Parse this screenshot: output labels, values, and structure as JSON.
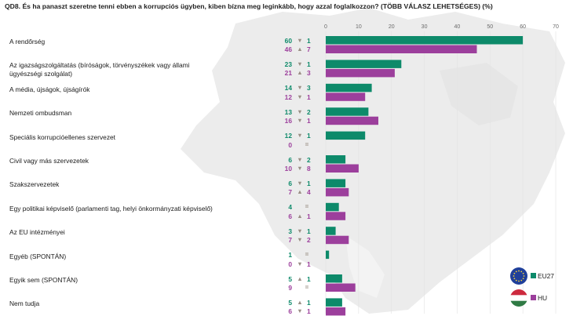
{
  "title": "QD8. És ha panaszt szeretne tenni ebben a korrupciós ügyben, kiben bízna meg leginkább, hogy azzal foglalkozzon? (TÖBB VÁLASZ LEHETSÉGES) (%)",
  "legend": {
    "eu_label": "EU27",
    "hu_label": "HU",
    "eu_icon": "eu-flag-icon",
    "hu_icon": "hungary-flag-icon"
  },
  "colors": {
    "eu": "#0d8a6a",
    "hu": "#9c3f9c",
    "arrow": "#9a8f85",
    "map": "#ececec"
  },
  "chart_data": {
    "type": "bar",
    "orientation": "horizontal",
    "xlim": [
      0,
      70
    ],
    "xticks": [
      "0",
      "10",
      "20",
      "30",
      "40",
      "50",
      "60",
      "70"
    ],
    "grid": true,
    "legend_position": "bottom-right",
    "categories": [
      "A rendőrség",
      "Az igazságszolgáltatás (bíróságok, törvényszékek vagy állami ügyészségi szolgálat)",
      "A média, újságok, újságírók",
      "Nemzeti ombudsman",
      "Speciális korrupcióellenes szervezet",
      "Civil vagy más szervezetek",
      "Szakszervezetek",
      "Egy politikai képviselő (parlamenti tag, helyi önkormányzati képviselő)",
      "Az EU intézményei",
      "Egyéb (SPONTÁN)",
      "Egyik sem (SPONTÁN)",
      "Nem tudja"
    ],
    "series": [
      {
        "name": "EU27",
        "values": [
          60,
          23,
          14,
          13,
          12,
          6,
          6,
          4,
          3,
          1,
          5,
          5
        ],
        "change_direction": [
          "down",
          "down",
          "down",
          "down",
          "down",
          "down",
          "down",
          "same",
          "down",
          "same",
          "up",
          "up"
        ],
        "change_value": [
          "1",
          "1",
          "3",
          "2",
          "1",
          "2",
          "1",
          "=",
          "1",
          "=",
          "1",
          "1"
        ]
      },
      {
        "name": "HU",
        "values": [
          46,
          21,
          12,
          16,
          0,
          10,
          7,
          6,
          7,
          0,
          9,
          6
        ],
        "change_direction": [
          "up",
          "up",
          "down",
          "down",
          "same",
          "down",
          "up",
          "up",
          "down",
          "down",
          "same",
          "down"
        ],
        "change_value": [
          "7",
          "3",
          "1",
          "1",
          "=",
          "8",
          "4",
          "1",
          "2",
          "1",
          "=",
          "1"
        ]
      }
    ]
  }
}
